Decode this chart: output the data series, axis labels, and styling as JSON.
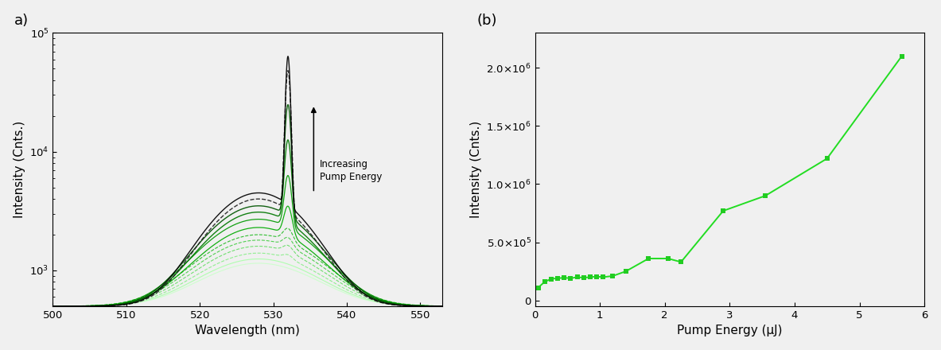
{
  "panel_a_label": "a)",
  "panel_b_label": "(b)",
  "xlabel_a": "Wavelength (nm)",
  "ylabel_a": "Intensity (Cnts.)",
  "xlabel_b": "Pump Energy (μJ)",
  "ylabel_b": "Intensity (Cnts.)",
  "annotation_text": "Increasing\nPump Energy",
  "xlim_a": [
    500,
    553
  ],
  "ylim_a": [
    500,
    100000
  ],
  "xticks_a": [
    500,
    510,
    520,
    530,
    540,
    550
  ],
  "xlim_b": [
    0,
    6
  ],
  "ylim_b": [
    -50000.0,
    2300000.0
  ],
  "yticks_b": [
    0.0,
    500000.0,
    1000000.0,
    1500000.0,
    2000000.0
  ],
  "pump_energy_x": [
    0.05,
    0.15,
    0.25,
    0.35,
    0.45,
    0.55,
    0.65,
    0.75,
    0.85,
    0.95,
    1.05,
    1.2,
    1.4,
    1.75,
    2.05,
    2.25,
    2.9,
    3.55,
    4.5,
    5.65
  ],
  "pump_energy_y": [
    110000.0,
    160000.0,
    185000.0,
    190000.0,
    195000.0,
    190000.0,
    200000.0,
    195000.0,
    200000.0,
    205000.0,
    200000.0,
    210000.0,
    250000.0,
    360000.0,
    360000.0,
    330000.0,
    770000.0,
    900000.0,
    1220000.0,
    2100000.0
  ],
  "line_color_b": "#22dd22",
  "marker_color_b": "#22cc22",
  "background_color": "#f0f0f0",
  "spectra": [
    {
      "peak_broad": 528,
      "amp_broad": 650,
      "fwhm_broad": 16,
      "peak_ase": 532,
      "amp_ase": 0,
      "fwhm_ase": 1.5,
      "color": "#ccffcc",
      "ls": "-",
      "lw": 0.8
    },
    {
      "peak_broad": 528,
      "amp_broad": 750,
      "fwhm_broad": 16,
      "peak_ase": 532,
      "amp_ase": 0,
      "fwhm_ase": 1.5,
      "color": "#aaffaa",
      "ls": "-",
      "lw": 0.8
    },
    {
      "peak_broad": 528,
      "amp_broad": 900,
      "fwhm_broad": 16,
      "peak_ase": 532,
      "amp_ase": 100,
      "fwhm_ase": 1.5,
      "color": "#88ee88",
      "ls": "--",
      "lw": 0.8
    },
    {
      "peak_broad": 528,
      "amp_broad": 1100,
      "fwhm_broad": 16,
      "peak_ase": 532,
      "amp_ase": 200,
      "fwhm_ase": 1.5,
      "color": "#66dd66",
      "ls": "--",
      "lw": 0.8
    },
    {
      "peak_broad": 528,
      "amp_broad": 1300,
      "fwhm_broad": 16,
      "peak_ase": 532,
      "amp_ase": 300,
      "fwhm_ase": 1.5,
      "color": "#44cc44",
      "ls": "--",
      "lw": 0.8
    },
    {
      "peak_broad": 528,
      "amp_broad": 1500,
      "fwhm_broad": 16,
      "peak_ase": 532,
      "amp_ase": 500,
      "fwhm_ase": 1.5,
      "color": "#22bb22",
      "ls": "--",
      "lw": 0.8
    },
    {
      "peak_broad": 528,
      "amp_broad": 1800,
      "fwhm_broad": 15,
      "peak_ase": 532,
      "amp_ase": 1500,
      "fwhm_ase": 1.2,
      "color": "#00aa00",
      "ls": "-",
      "lw": 0.9
    },
    {
      "peak_broad": 528,
      "amp_broad": 2200,
      "fwhm_broad": 15,
      "peak_ase": 532,
      "amp_ase": 4000,
      "fwhm_ase": 1.0,
      "color": "#009900",
      "ls": "-",
      "lw": 0.9
    },
    {
      "peak_broad": 528,
      "amp_broad": 2600,
      "fwhm_broad": 14,
      "peak_ase": 532,
      "amp_ase": 10000,
      "fwhm_ase": 0.9,
      "color": "#007700",
      "ls": "-",
      "lw": 1.0
    },
    {
      "peak_broad": 528,
      "amp_broad": 3000,
      "fwhm_broad": 14,
      "peak_ase": 532,
      "amp_ase": 22000,
      "fwhm_ase": 0.8,
      "color": "#005500",
      "ls": "-",
      "lw": 1.0
    },
    {
      "peak_broad": 528,
      "amp_broad": 3500,
      "fwhm_broad": 13,
      "peak_ase": 532,
      "amp_ase": 45000,
      "fwhm_ase": 0.7,
      "color": "#222222",
      "ls": "--",
      "lw": 1.0
    },
    {
      "peak_broad": 528,
      "amp_broad": 4000,
      "fwhm_broad": 13,
      "peak_ase": 532,
      "amp_ase": 60000,
      "fwhm_ase": 0.6,
      "color": "#000000",
      "ls": "-",
      "lw": 1.0
    }
  ]
}
